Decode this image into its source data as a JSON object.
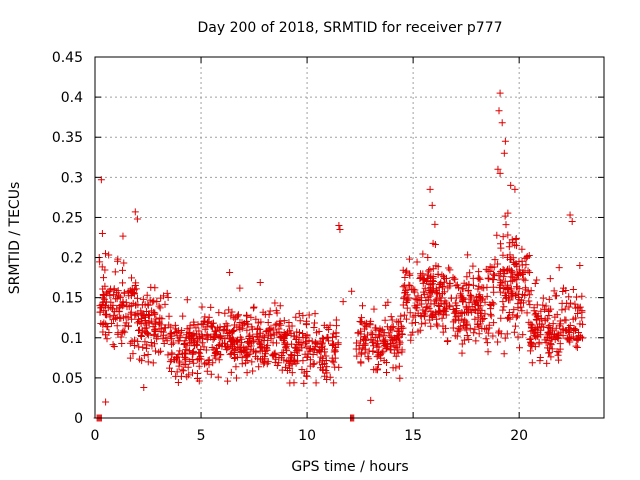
{
  "chart_data": {
    "type": "scatter",
    "title": "Day 200 of 2018, SRMTID for receiver p777",
    "xlabel": "GPS time / hours",
    "ylabel": "SRMTID / TECUs",
    "xlim": [
      0,
      24
    ],
    "ylim": [
      0,
      0.45
    ],
    "grid": true,
    "x_ticks": [
      {
        "value": 0,
        "label": "0"
      },
      {
        "value": 5,
        "label": "5"
      },
      {
        "value": 10,
        "label": "10"
      },
      {
        "value": 15,
        "label": "15"
      },
      {
        "value": 20,
        "label": "20"
      }
    ],
    "y_ticks": [
      {
        "value": 0,
        "label": "0"
      },
      {
        "value": 0.05,
        "label": "0.05"
      },
      {
        "value": 0.1,
        "label": "0.1"
      },
      {
        "value": 0.15,
        "label": "0.15"
      },
      {
        "value": 0.2,
        "label": "0.2"
      },
      {
        "value": 0.25,
        "label": "0.25"
      },
      {
        "value": 0.3,
        "label": "0.3"
      },
      {
        "value": 0.35,
        "label": "0.35"
      },
      {
        "value": 0.4,
        "label": "0.4"
      },
      {
        "value": 0.45,
        "label": "0.45"
      }
    ],
    "colors": {
      "points": "#e00000",
      "grid": "#a0a0a0",
      "axis": "#000000"
    },
    "series": [
      {
        "name": "SRMTID",
        "marker": "plus",
        "cloud_segments": [
          {
            "x_range": [
              0.2,
              2.0
            ],
            "y_center": 0.14,
            "y_spread": 0.05,
            "count": 140
          },
          {
            "x_range": [
              2.0,
              3.5
            ],
            "y_center": 0.115,
            "y_spread": 0.04,
            "count": 110
          },
          {
            "x_range": [
              3.5,
              5.0
            ],
            "y_center": 0.09,
            "y_spread": 0.035,
            "count": 120
          },
          {
            "x_range": [
              5.0,
              7.0
            ],
            "y_center": 0.095,
            "y_spread": 0.035,
            "count": 150
          },
          {
            "x_range": [
              7.0,
              9.0
            ],
            "y_center": 0.095,
            "y_spread": 0.035,
            "count": 150
          },
          {
            "x_range": [
              9.0,
              11.5
            ],
            "y_center": 0.085,
            "y_spread": 0.035,
            "count": 170
          },
          {
            "x_range": [
              12.3,
              14.5
            ],
            "y_center": 0.095,
            "y_spread": 0.035,
            "count": 150
          },
          {
            "x_range": [
              14.5,
              16.5
            ],
            "y_center": 0.15,
            "y_spread": 0.045,
            "count": 170
          },
          {
            "x_range": [
              16.5,
              18.8
            ],
            "y_center": 0.14,
            "y_spread": 0.045,
            "count": 180
          },
          {
            "x_range": [
              18.8,
              20.5
            ],
            "y_center": 0.17,
            "y_spread": 0.06,
            "count": 150
          },
          {
            "x_range": [
              20.5,
              23.0
            ],
            "y_center": 0.11,
            "y_spread": 0.04,
            "count": 180
          }
        ],
        "notable_points": [
          {
            "x": 0.3,
            "y": 0.297
          },
          {
            "x": 0.5,
            "y": 0.02
          },
          {
            "x": 0.35,
            "y": 0.23
          },
          {
            "x": 0.2,
            "y": 0.2
          },
          {
            "x": 1.9,
            "y": 0.257
          },
          {
            "x": 2.0,
            "y": 0.248
          },
          {
            "x": 2.3,
            "y": 0.038
          },
          {
            "x": 11.5,
            "y": 0.24
          },
          {
            "x": 11.55,
            "y": 0.235
          },
          {
            "x": 11.7,
            "y": 0.145
          },
          {
            "x": 12.1,
            "y": 0.158
          },
          {
            "x": 13.0,
            "y": 0.022
          },
          {
            "x": 15.8,
            "y": 0.285
          },
          {
            "x": 15.9,
            "y": 0.265
          },
          {
            "x": 19.1,
            "y": 0.405
          },
          {
            "x": 19.05,
            "y": 0.383
          },
          {
            "x": 19.2,
            "y": 0.368
          },
          {
            "x": 19.35,
            "y": 0.345
          },
          {
            "x": 19.3,
            "y": 0.33
          },
          {
            "x": 19.0,
            "y": 0.31
          },
          {
            "x": 19.1,
            "y": 0.305
          },
          {
            "x": 19.6,
            "y": 0.29
          },
          {
            "x": 19.8,
            "y": 0.285
          },
          {
            "x": 22.4,
            "y": 0.253
          },
          {
            "x": 22.5,
            "y": 0.245
          }
        ],
        "zero_points": [
          {
            "x": 0.1,
            "y": 0
          },
          {
            "x": 0.15,
            "y": 0
          },
          {
            "x": 0.2,
            "y": 0
          },
          {
            "x": 0.25,
            "y": 0
          },
          {
            "x": 0.3,
            "y": 0
          },
          {
            "x": 12.05,
            "y": 0
          },
          {
            "x": 12.1,
            "y": 0
          },
          {
            "x": 12.15,
            "y": 0
          },
          {
            "x": 12.2,
            "y": 0
          }
        ]
      }
    ]
  }
}
